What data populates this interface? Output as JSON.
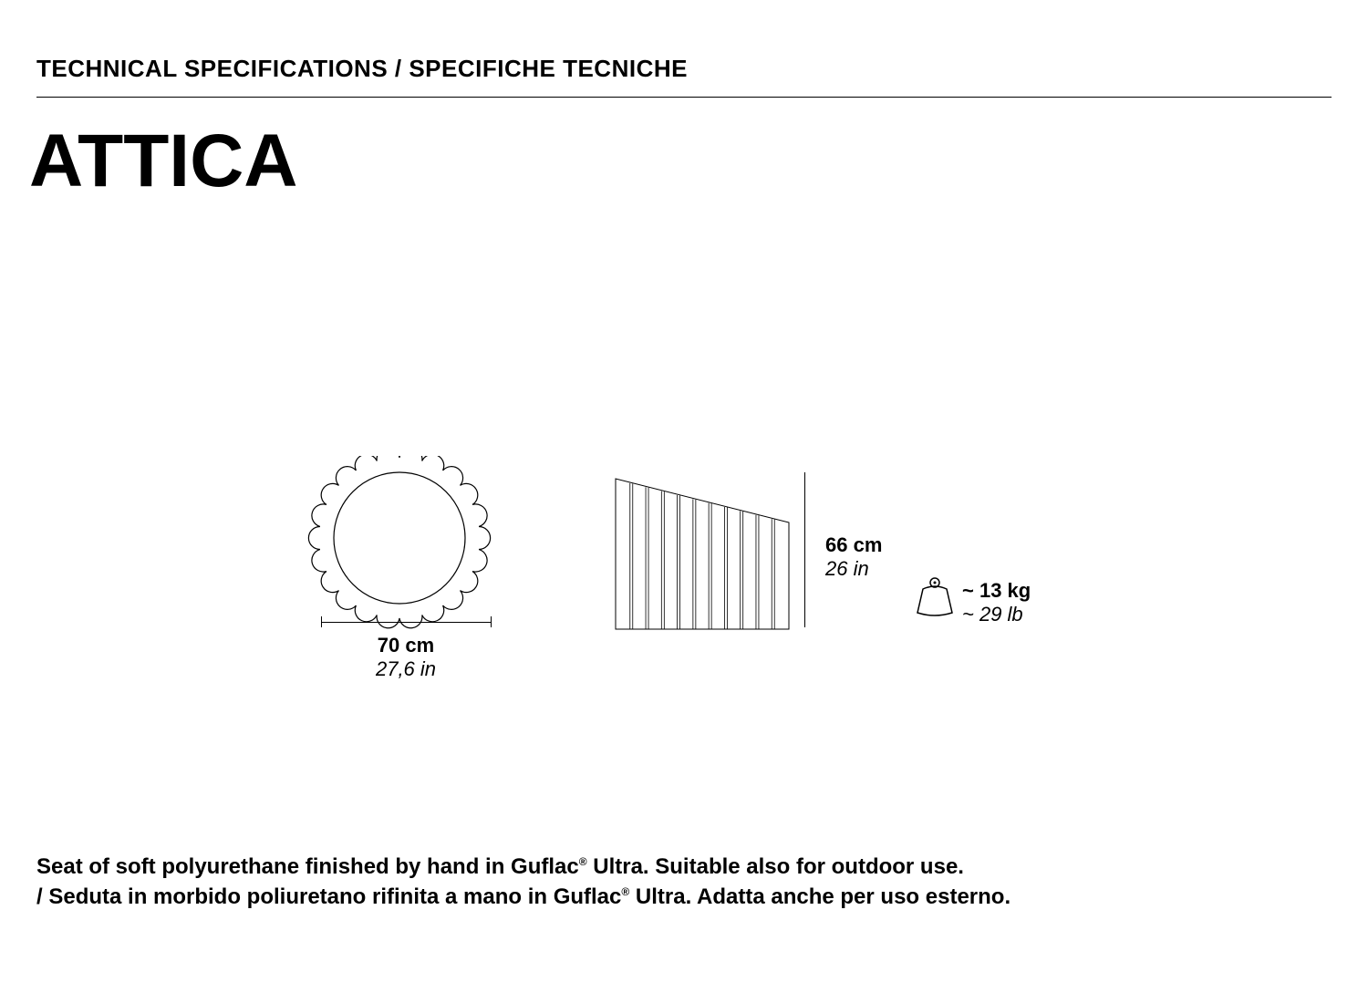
{
  "header": "TECHNICAL SPECIFICATIONS / SPECIFICHE TECNICHE",
  "title": "ATTICA",
  "dimensions": {
    "width_cm": "70 cm",
    "width_in": "27,6 in",
    "height_cm": "66 cm",
    "height_in": "26 in",
    "weight_kg": "~ 13 kg",
    "weight_lb": "~ 29 lb"
  },
  "gear": {
    "teeth": 22,
    "outer_r": 90,
    "inner_r": 72,
    "tooth_r": 10,
    "stroke": "#000000",
    "stroke_width": 1.2
  },
  "side_view": {
    "width": 190,
    "height": 165,
    "top_slope": 48,
    "flutes": 11,
    "stroke": "#000000",
    "stroke_width": 1.0
  },
  "colors": {
    "background": "#ffffff",
    "text": "#000000",
    "line": "#000000"
  },
  "description_en_pre": "Seat of soft polyurethane finished by hand in Guflac",
  "description_en_post": " Ultra. Suitable also for outdoor use.",
  "description_it_pre": "/ Seduta in morbido poliuretano rifinita a mano in Guflac",
  "description_it_post": " Ultra. Adatta anche per uso esterno.",
  "reg": "®"
}
